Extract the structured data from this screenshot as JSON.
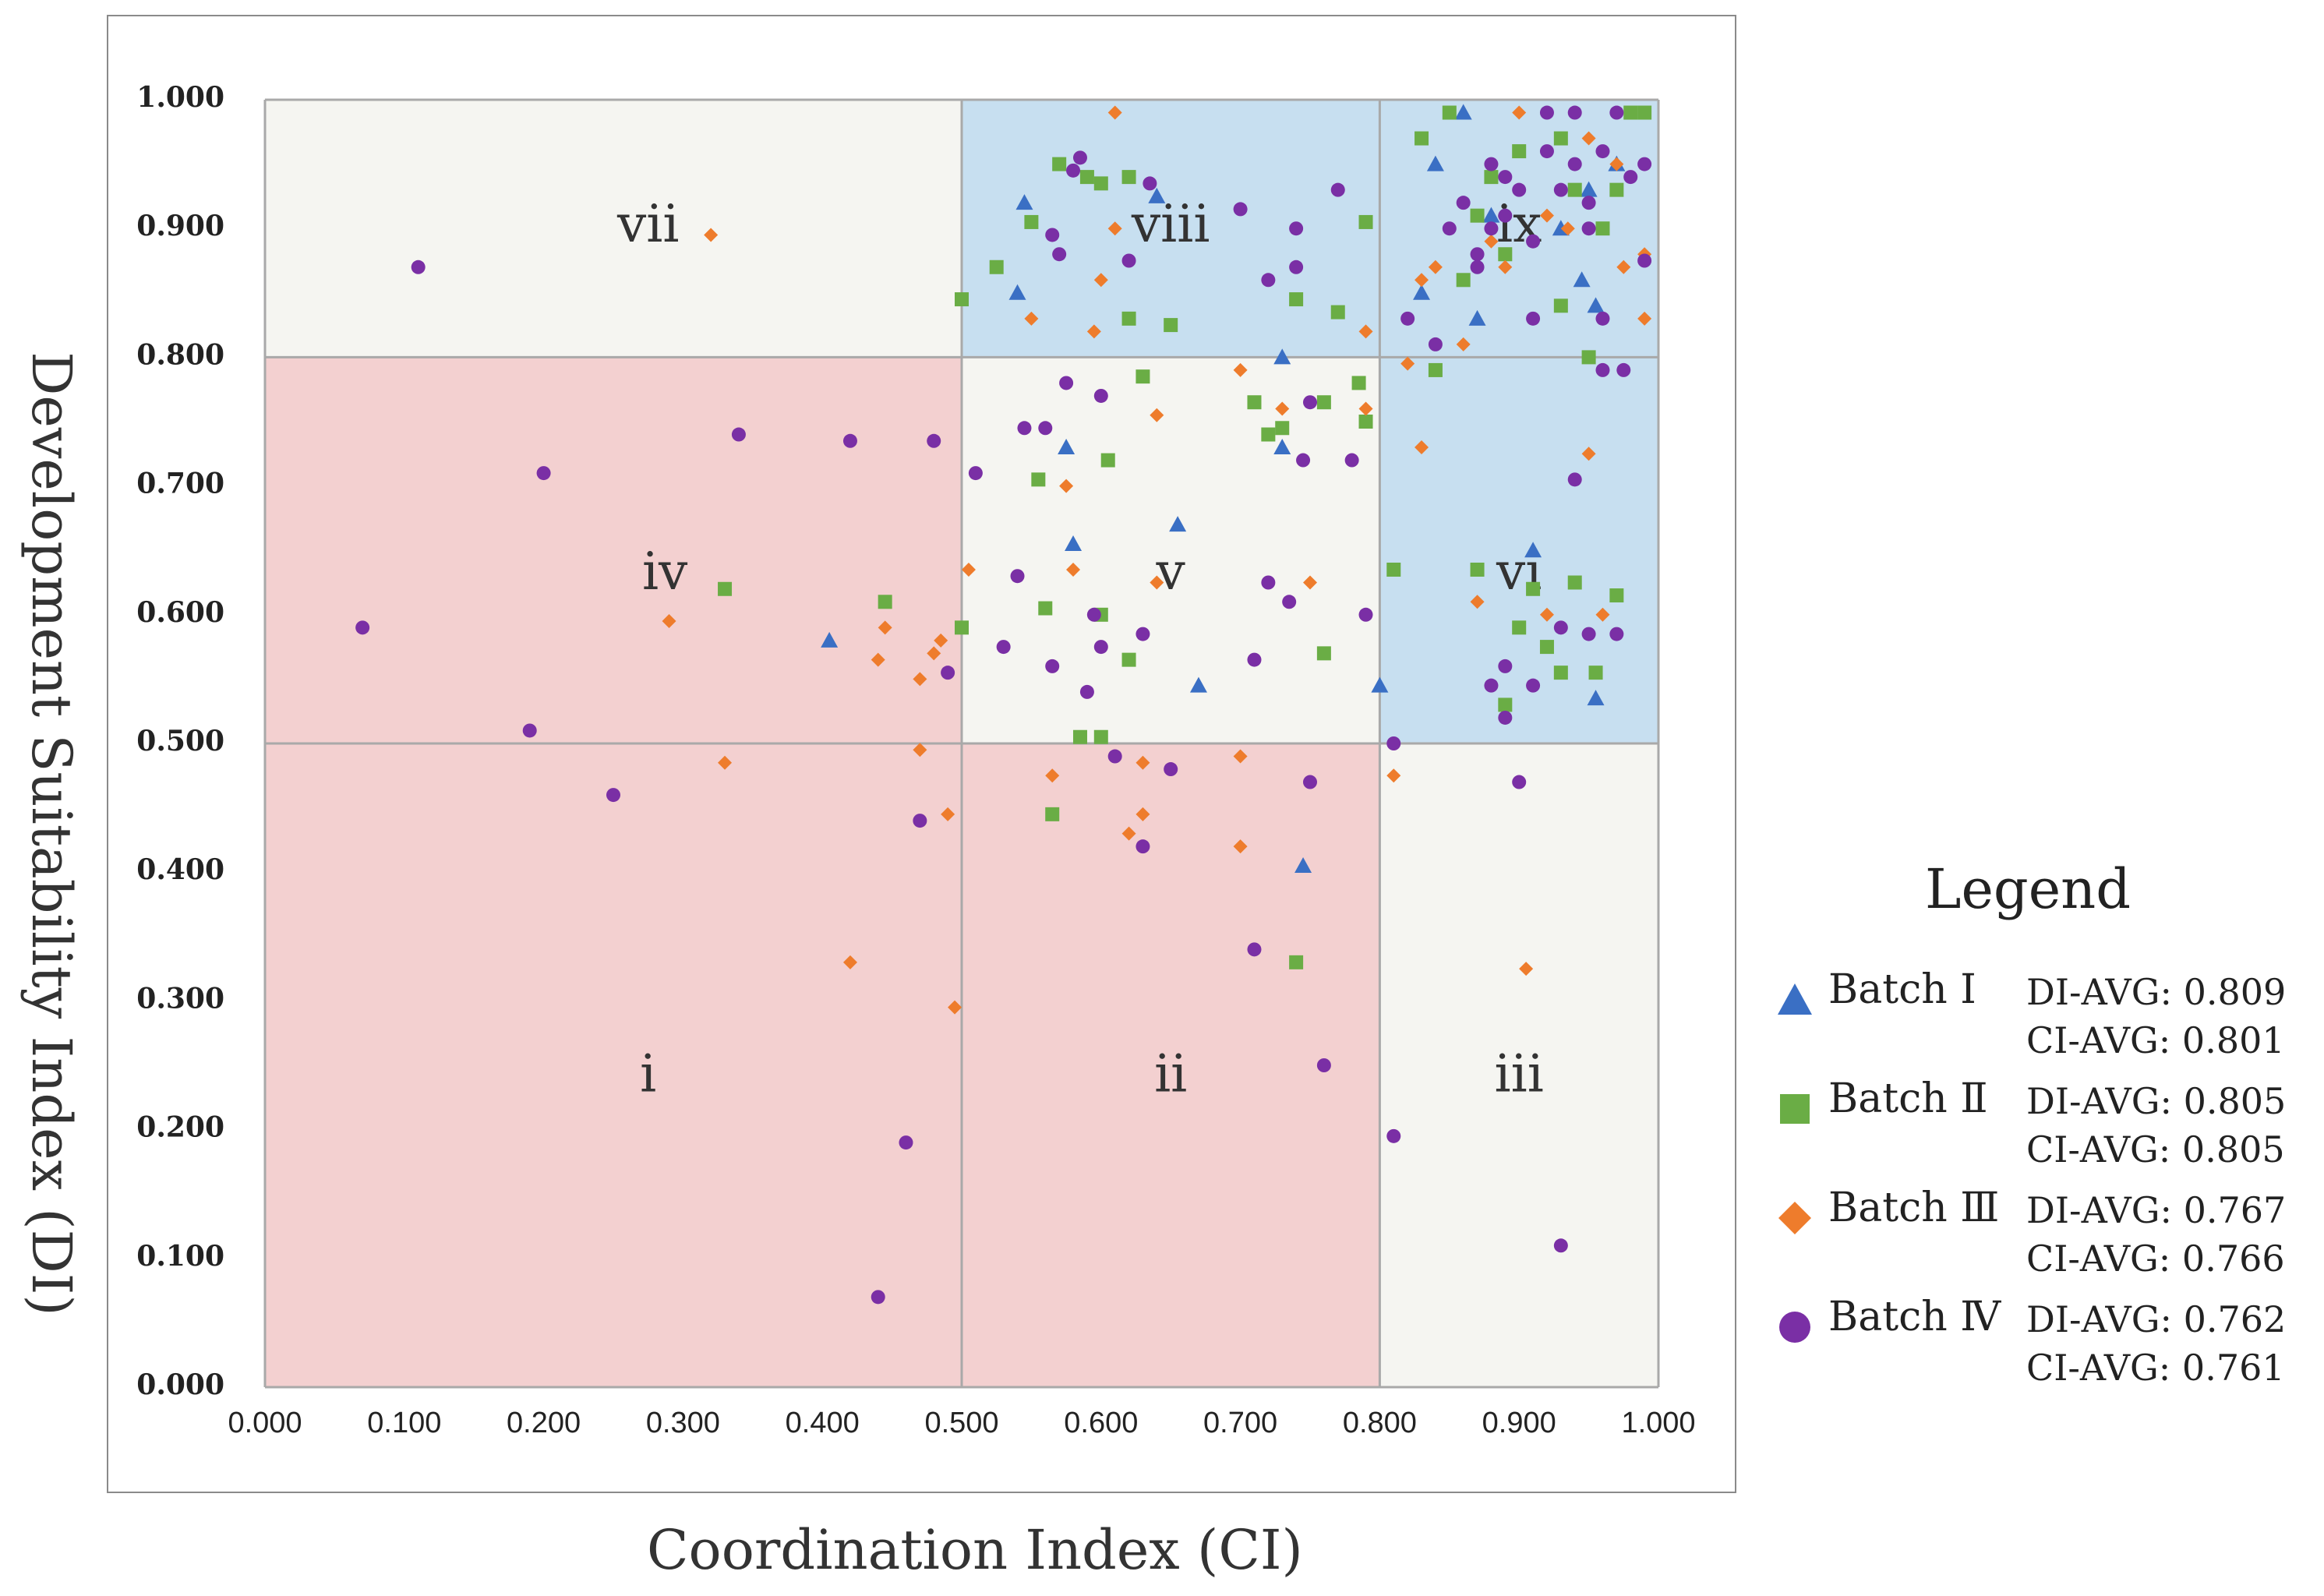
{
  "chart_data": {
    "type": "scatter",
    "xlabel": "Coordination  Index (CI)",
    "ylabel": "Development Suitability Index  (DI)",
    "xlim": [
      0,
      1
    ],
    "ylim": [
      0,
      1
    ],
    "x_ticks": [
      "0.000",
      "0.100",
      "0.200",
      "0.300",
      "0.400",
      "0.500",
      "0.600",
      "0.700",
      "0.800",
      "0.900",
      "1.000"
    ],
    "y_ticks": [
      "0.000",
      "0.100",
      "0.200",
      "0.300",
      "0.400",
      "0.500",
      "0.600",
      "0.700",
      "0.800",
      "0.900",
      "1.000"
    ],
    "regions": [
      {
        "label": "i",
        "x": [
          0.0,
          0.5
        ],
        "y": [
          0.0,
          0.5
        ],
        "color": "#f3d0d0",
        "label_at": [
          0.275,
          0.24
        ]
      },
      {
        "label": "ii",
        "x": [
          0.5,
          0.8
        ],
        "y": [
          0.0,
          0.5
        ],
        "color": "#f3d0d0",
        "label_at": [
          0.65,
          0.24
        ]
      },
      {
        "label": "iii",
        "x": [
          0.8,
          1.0
        ],
        "y": [
          0.0,
          0.5
        ],
        "color": "#f5f5f1",
        "label_at": [
          0.9,
          0.24
        ]
      },
      {
        "label": "iv",
        "x": [
          0.0,
          0.5
        ],
        "y": [
          0.5,
          0.8
        ],
        "color": "#f3d0d0",
        "label_at": [
          0.287,
          0.63
        ]
      },
      {
        "label": "v",
        "x": [
          0.5,
          0.8
        ],
        "y": [
          0.5,
          0.8
        ],
        "color": "#f5f5f1",
        "label_at": [
          0.65,
          0.63
        ]
      },
      {
        "label": "vi",
        "x": [
          0.8,
          1.0
        ],
        "y": [
          0.5,
          0.8
        ],
        "color": "#c7dff0",
        "label_at": [
          0.9,
          0.63
        ]
      },
      {
        "label": "vii",
        "x": [
          0.0,
          0.5
        ],
        "y": [
          0.8,
          1.0
        ],
        "color": "#f5f5f1",
        "label_at": [
          0.275,
          0.9
        ]
      },
      {
        "label": "viii",
        "x": [
          0.5,
          0.8
        ],
        "y": [
          0.8,
          1.0
        ],
        "color": "#c7dff0",
        "label_at": [
          0.65,
          0.9
        ]
      },
      {
        "label": "ix",
        "x": [
          0.8,
          1.0
        ],
        "y": [
          0.8,
          1.0
        ],
        "color": "#c7dff0",
        "label_at": [
          0.9,
          0.9
        ]
      }
    ],
    "legend_title": "Legend",
    "legend_position": "right",
    "series": [
      {
        "name": "Batch Ⅰ",
        "marker": "triangle",
        "color": "#3a6fc4",
        "di_avg": "DI-AVG:  0.809",
        "ci_avg": "CI-AVG:  0.801",
        "points": [
          [
            0.545,
            0.92
          ],
          [
            0.575,
            0.73
          ],
          [
            0.58,
            0.655
          ],
          [
            0.405,
            0.58
          ],
          [
            0.67,
            0.545
          ],
          [
            0.655,
            0.67
          ],
          [
            0.73,
            0.73
          ],
          [
            0.73,
            0.8
          ],
          [
            0.745,
            0.405
          ],
          [
            0.64,
            0.925
          ],
          [
            0.54,
            0.85
          ],
          [
            0.8,
            0.545
          ],
          [
            0.84,
            0.95
          ],
          [
            0.86,
            0.99
          ],
          [
            0.87,
            0.83
          ],
          [
            0.91,
            0.65
          ],
          [
            0.955,
            0.535
          ],
          [
            0.955,
            0.84
          ],
          [
            0.945,
            0.86
          ],
          [
            0.93,
            0.9
          ],
          [
            0.88,
            0.91
          ],
          [
            0.83,
            0.85
          ],
          [
            0.97,
            0.95
          ],
          [
            0.95,
            0.93
          ]
        ]
      },
      {
        "name": "Batch Ⅱ",
        "marker": "square",
        "color": "#6aad45",
        "di_avg": "DI-AVG:  0.805",
        "ci_avg": "CI-AVG:  0.805",
        "points": [
          [
            0.33,
            0.62
          ],
          [
            0.445,
            0.61
          ],
          [
            0.5,
            0.59
          ],
          [
            0.555,
            0.705
          ],
          [
            0.56,
            0.605
          ],
          [
            0.565,
            0.445
          ],
          [
            0.585,
            0.505
          ],
          [
            0.6,
            0.6
          ],
          [
            0.605,
            0.72
          ],
          [
            0.62,
            0.565
          ],
          [
            0.63,
            0.785
          ],
          [
            0.6,
            0.505
          ],
          [
            0.71,
            0.765
          ],
          [
            0.72,
            0.74
          ],
          [
            0.73,
            0.745
          ],
          [
            0.76,
            0.765
          ],
          [
            0.76,
            0.57
          ],
          [
            0.74,
            0.33
          ],
          [
            0.785,
            0.78
          ],
          [
            0.79,
            0.75
          ],
          [
            0.5,
            0.845
          ],
          [
            0.525,
            0.87
          ],
          [
            0.55,
            0.905
          ],
          [
            0.57,
            0.95
          ],
          [
            0.59,
            0.94
          ],
          [
            0.6,
            0.935
          ],
          [
            0.62,
            0.94
          ],
          [
            0.62,
            0.83
          ],
          [
            0.65,
            0.825
          ],
          [
            0.74,
            0.845
          ],
          [
            0.77,
            0.835
          ],
          [
            0.79,
            0.905
          ],
          [
            0.81,
            0.635
          ],
          [
            0.87,
            0.635
          ],
          [
            0.89,
            0.53
          ],
          [
            0.9,
            0.59
          ],
          [
            0.91,
            0.62
          ],
          [
            0.93,
            0.555
          ],
          [
            0.94,
            0.625
          ],
          [
            0.955,
            0.555
          ],
          [
            0.97,
            0.615
          ],
          [
            0.92,
            0.575
          ],
          [
            0.84,
            0.79
          ],
          [
            0.85,
            0.99
          ],
          [
            0.88,
            0.94
          ],
          [
            0.9,
            0.96
          ],
          [
            0.93,
            0.97
          ],
          [
            0.95,
            0.8
          ],
          [
            0.96,
            0.9
          ],
          [
            0.97,
            0.93
          ],
          [
            0.98,
            0.99
          ],
          [
            0.99,
            0.99
          ],
          [
            0.86,
            0.86
          ],
          [
            0.89,
            0.88
          ],
          [
            0.93,
            0.84
          ],
          [
            0.94,
            0.93
          ],
          [
            0.83,
            0.97
          ],
          [
            0.87,
            0.91
          ]
        ]
      },
      {
        "name": "Batch Ⅲ",
        "marker": "diamond",
        "color": "#ee7c2c",
        "di_avg": "DI-AVG:  0.767",
        "ci_avg": "CI-AVG:  0.766",
        "points": [
          [
            0.32,
            0.895
          ],
          [
            0.29,
            0.595
          ],
          [
            0.33,
            0.485
          ],
          [
            0.42,
            0.33
          ],
          [
            0.44,
            0.565
          ],
          [
            0.445,
            0.59
          ],
          [
            0.47,
            0.55
          ],
          [
            0.47,
            0.495
          ],
          [
            0.48,
            0.57
          ],
          [
            0.485,
            0.58
          ],
          [
            0.49,
            0.445
          ],
          [
            0.495,
            0.295
          ],
          [
            0.505,
            0.635
          ],
          [
            0.565,
            0.475
          ],
          [
            0.575,
            0.7
          ],
          [
            0.58,
            0.635
          ],
          [
            0.6,
            0.86
          ],
          [
            0.61,
            0.9
          ],
          [
            0.61,
            0.99
          ],
          [
            0.63,
            0.485
          ],
          [
            0.63,
            0.445
          ],
          [
            0.64,
            0.625
          ],
          [
            0.64,
            0.755
          ],
          [
            0.62,
            0.43
          ],
          [
            0.595,
            0.82
          ],
          [
            0.55,
            0.83
          ],
          [
            0.7,
            0.49
          ],
          [
            0.7,
            0.42
          ],
          [
            0.7,
            0.79
          ],
          [
            0.73,
            0.76
          ],
          [
            0.75,
            0.625
          ],
          [
            0.79,
            0.76
          ],
          [
            0.79,
            0.82
          ],
          [
            0.81,
            0.475
          ],
          [
            0.82,
            0.795
          ],
          [
            0.83,
            0.73
          ],
          [
            0.84,
            0.87
          ],
          [
            0.87,
            0.61
          ],
          [
            0.9,
            0.99
          ],
          [
            0.905,
            0.325
          ],
          [
            0.92,
            0.6
          ],
          [
            0.95,
            0.725
          ],
          [
            0.96,
            0.6
          ],
          [
            0.99,
            0.83
          ],
          [
            0.99,
            0.88
          ],
          [
            0.975,
            0.87
          ],
          [
            0.92,
            0.91
          ],
          [
            0.935,
            0.9
          ],
          [
            0.89,
            0.87
          ],
          [
            0.88,
            0.89
          ],
          [
            0.86,
            0.81
          ],
          [
            0.83,
            0.86
          ],
          [
            0.95,
            0.97
          ],
          [
            0.97,
            0.95
          ]
        ]
      },
      {
        "name": "Batch Ⅳ",
        "marker": "circle",
        "color": "#7a2fa5",
        "di_avg": "DI-AVG:  0.762",
        "ci_avg": "CI-AVG:  0.761",
        "points": [
          [
            0.11,
            0.87
          ],
          [
            0.07,
            0.59
          ],
          [
            0.19,
            0.51
          ],
          [
            0.2,
            0.71
          ],
          [
            0.25,
            0.46
          ],
          [
            0.34,
            0.74
          ],
          [
            0.42,
            0.735
          ],
          [
            0.44,
            0.07
          ],
          [
            0.46,
            0.19
          ],
          [
            0.47,
            0.44
          ],
          [
            0.48,
            0.735
          ],
          [
            0.49,
            0.555
          ],
          [
            0.51,
            0.71
          ],
          [
            0.53,
            0.575
          ],
          [
            0.54,
            0.63
          ],
          [
            0.545,
            0.745
          ],
          [
            0.56,
            0.745
          ],
          [
            0.565,
            0.56
          ],
          [
            0.565,
            0.895
          ],
          [
            0.57,
            0.88
          ],
          [
            0.575,
            0.78
          ],
          [
            0.58,
            0.945
          ],
          [
            0.585,
            0.955
          ],
          [
            0.59,
            0.54
          ],
          [
            0.595,
            0.6
          ],
          [
            0.6,
            0.575
          ],
          [
            0.6,
            0.77
          ],
          [
            0.61,
            0.49
          ],
          [
            0.62,
            0.875
          ],
          [
            0.63,
            0.42
          ],
          [
            0.63,
            0.585
          ],
          [
            0.635,
            0.935
          ],
          [
            0.65,
            0.48
          ],
          [
            0.7,
            0.915
          ],
          [
            0.71,
            0.34
          ],
          [
            0.71,
            0.565
          ],
          [
            0.72,
            0.625
          ],
          [
            0.72,
            0.86
          ],
          [
            0.735,
            0.61
          ],
          [
            0.74,
            0.87
          ],
          [
            0.74,
            0.9
          ],
          [
            0.745,
            0.72
          ],
          [
            0.75,
            0.47
          ],
          [
            0.75,
            0.765
          ],
          [
            0.76,
            0.25
          ],
          [
            0.77,
            0.93
          ],
          [
            0.78,
            0.72
          ],
          [
            0.79,
            0.6
          ],
          [
            0.81,
            0.195
          ],
          [
            0.81,
            0.5
          ],
          [
            0.82,
            0.83
          ],
          [
            0.84,
            0.81
          ],
          [
            0.88,
            0.545
          ],
          [
            0.89,
            0.52
          ],
          [
            0.89,
            0.56
          ],
          [
            0.9,
            0.47
          ],
          [
            0.91,
            0.545
          ],
          [
            0.93,
            0.11
          ],
          [
            0.93,
            0.59
          ],
          [
            0.94,
            0.705
          ],
          [
            0.95,
            0.585
          ],
          [
            0.96,
            0.79
          ],
          [
            0.97,
            0.585
          ],
          [
            0.975,
            0.79
          ],
          [
            0.85,
            0.9
          ],
          [
            0.86,
            0.92
          ],
          [
            0.87,
            0.88
          ],
          [
            0.88,
            0.95
          ],
          [
            0.89,
            0.91
          ],
          [
            0.9,
            0.93
          ],
          [
            0.91,
            0.89
          ],
          [
            0.92,
            0.96
          ],
          [
            0.93,
            0.93
          ],
          [
            0.94,
            0.95
          ],
          [
            0.95,
            0.92
          ],
          [
            0.96,
            0.96
          ],
          [
            0.97,
            0.99
          ],
          [
            0.98,
            0.94
          ],
          [
            0.99,
            0.875
          ],
          [
            0.99,
            0.95
          ],
          [
            0.87,
            0.87
          ],
          [
            0.89,
            0.94
          ],
          [
            0.92,
            0.99
          ],
          [
            0.94,
            0.99
          ],
          [
            0.96,
            0.83
          ],
          [
            0.91,
            0.83
          ],
          [
            0.88,
            0.9
          ],
          [
            0.95,
            0.9
          ]
        ]
      }
    ]
  }
}
